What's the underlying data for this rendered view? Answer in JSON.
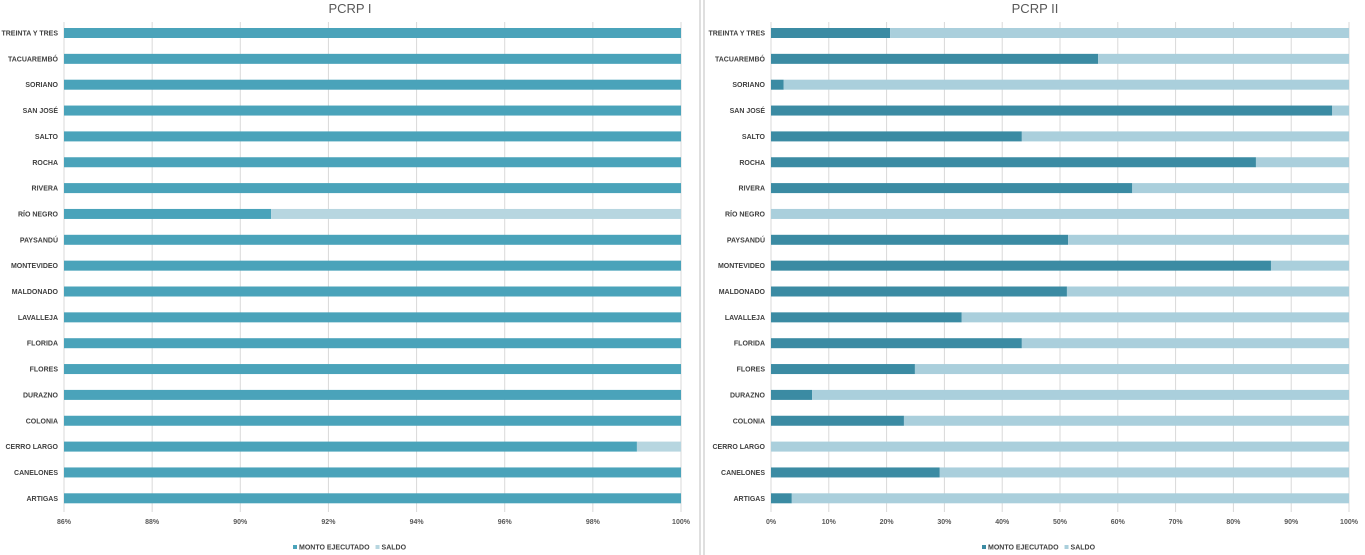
{
  "chart_data": [
    {
      "type": "bar",
      "orientation": "horizontal",
      "stacked": "percent",
      "title": "PCRP I",
      "categories": [
        "TREINTA Y TRES",
        "TACUAREMBÓ",
        "SORIANO",
        "SAN JOSÉ",
        "SALTO",
        "ROCHA",
        "RIVERA",
        "RÍO NEGRO",
        "PAYSANDÚ",
        "MONTEVIDEO",
        "MALDONADO",
        "LAVALLEJA",
        "FLORIDA",
        "FLORES",
        "DURAZNO",
        "COLONIA",
        "CERRO LARGO",
        "CANELONES",
        "ARTIGAS"
      ],
      "series": [
        {
          "name": "MONTO EJECUTADO",
          "color": "#4aa3ba",
          "values": [
            100,
            100,
            100,
            100,
            100,
            100,
            100,
            90.7,
            100,
            100,
            100,
            100,
            100,
            100,
            100,
            100,
            99.0,
            100,
            100
          ]
        },
        {
          "name": "SALDO",
          "color": "#b7d6e0",
          "values": [
            0,
            0,
            0,
            0,
            0,
            0,
            0,
            9.3,
            0,
            0,
            0,
            0,
            0,
            0,
            0,
            0,
            1.0,
            0,
            0
          ]
        }
      ],
      "xlim": [
        86,
        100
      ],
      "xticks": [
        "86%",
        "88%",
        "90%",
        "92%",
        "94%",
        "96%",
        "98%",
        "100%"
      ],
      "grid": true,
      "legend": "bottom"
    },
    {
      "type": "bar",
      "orientation": "horizontal",
      "stacked": "percent",
      "title": "PCRP II",
      "categories": [
        "TREINTA Y TRES",
        "TACUAREMBÓ",
        "SORIANO",
        "SAN JOSÉ",
        "SALTO",
        "ROCHA",
        "RIVERA",
        "RÍO NEGRO",
        "PAYSANDÚ",
        "MONTEVIDEO",
        "MALDONADO",
        "LAVALLEJA",
        "FLORIDA",
        "FLORES",
        "DURAZNO",
        "COLONIA",
        "CERRO LARGO",
        "CANELONES",
        "ARTIGAS"
      ],
      "series": [
        {
          "name": "MONTO EJECUTADO",
          "color": "#3b8ba3",
          "values": [
            20.6,
            56.6,
            2.2,
            97.1,
            43.4,
            83.9,
            62.5,
            0,
            51.4,
            86.5,
            51.2,
            33.0,
            43.4,
            24.9,
            7.1,
            23.0,
            0,
            29.2,
            3.6
          ]
        },
        {
          "name": "SALDO",
          "color": "#aacfdc",
          "values": [
            79.4,
            43.4,
            97.8,
            2.9,
            56.6,
            16.1,
            37.5,
            100,
            48.6,
            13.5,
            48.8,
            67.0,
            56.6,
            75.1,
            92.9,
            77.0,
            100,
            70.8,
            96.4
          ]
        }
      ],
      "xlim": [
        0,
        100
      ],
      "xticks": [
        "0%",
        "10%",
        "20%",
        "30%",
        "40%",
        "50%",
        "60%",
        "70%",
        "80%",
        "90%",
        "100%"
      ],
      "grid": true,
      "legend": "bottom"
    }
  ]
}
